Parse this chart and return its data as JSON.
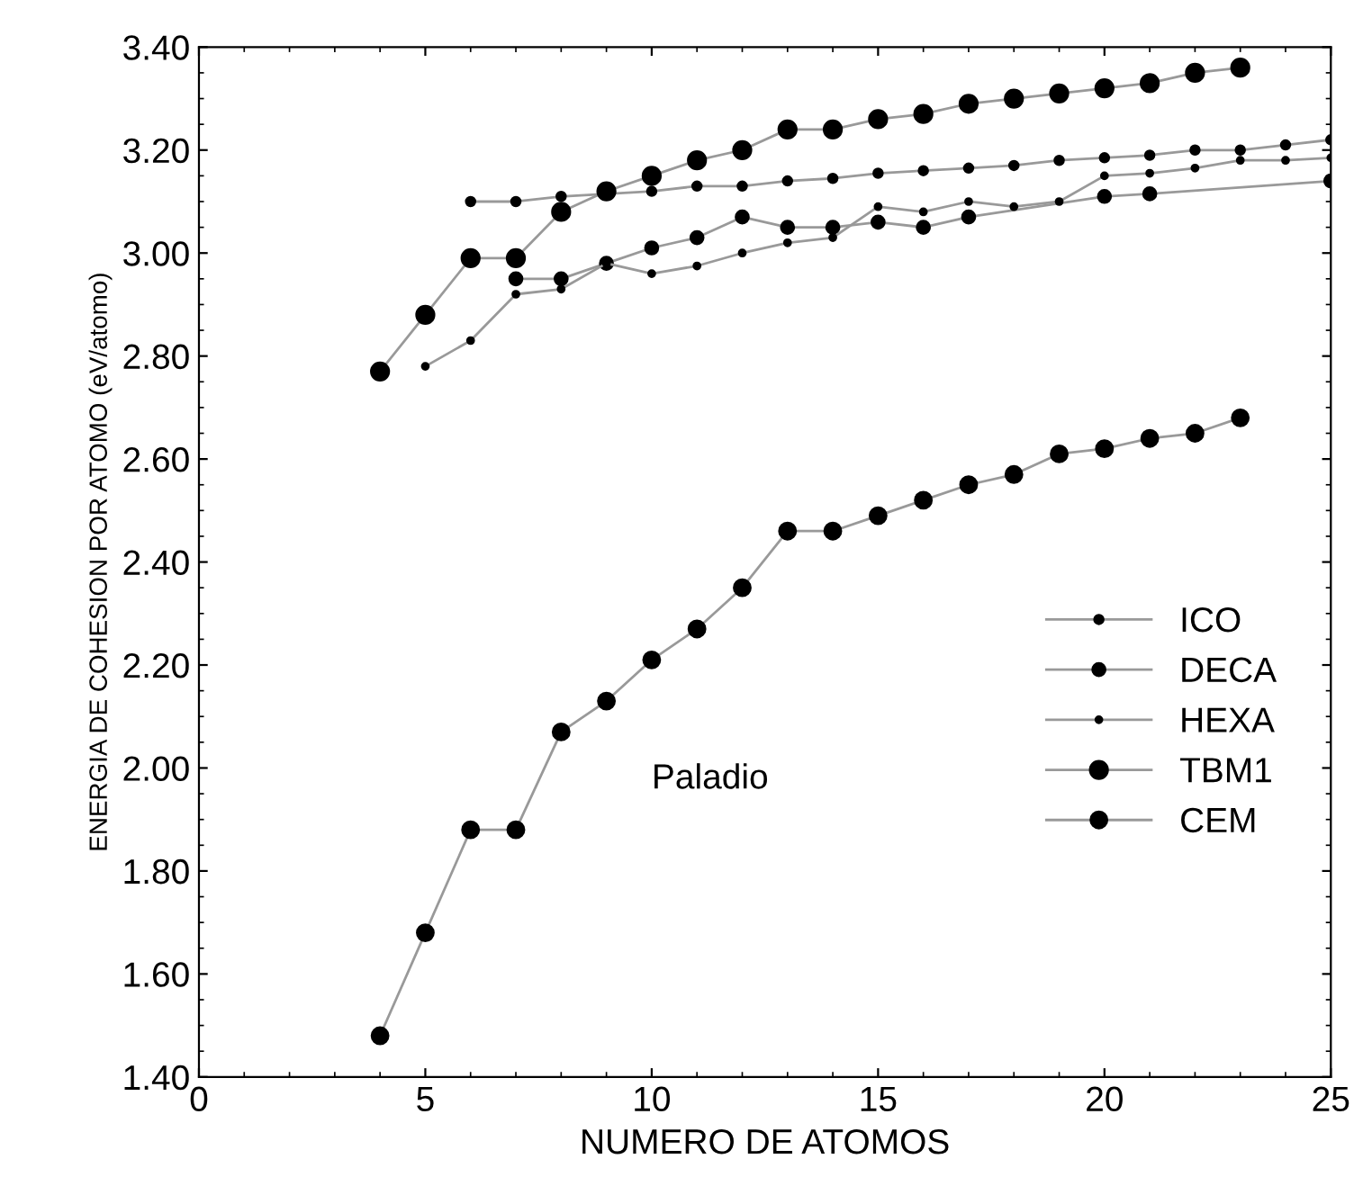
{
  "chart_data": {
    "type": "line",
    "xlabel": "NUMERO DE ATOMOS",
    "ylabel": "ENERGIA DE COHESION POR ATOMO (eV/atomo)",
    "annotations": [
      "Paladio"
    ],
    "xlim": [
      0,
      25
    ],
    "xticks": [
      0,
      5,
      10,
      15,
      20,
      25
    ],
    "ylim": [
      1.4,
      3.4
    ],
    "yticks": [
      {
        "value": 1.4,
        "label": "1.40"
      },
      {
        "value": 1.6,
        "label": "1.60"
      },
      {
        "value": 1.8,
        "label": "1.80"
      },
      {
        "value": 2.0,
        "label": "2.00"
      },
      {
        "value": 2.2,
        "label": "2.20"
      },
      {
        "value": 2.4,
        "label": "2.40"
      },
      {
        "value": 2.6,
        "label": "2.60"
      },
      {
        "value": 2.8,
        "label": "2.80"
      },
      {
        "value": 3.0,
        "label": "3.00"
      },
      {
        "value": 3.2,
        "label": "3.20"
      },
      {
        "value": 3.4,
        "label": "3.40"
      }
    ],
    "legend": "bottom right",
    "marker": "circle",
    "grid": false,
    "series": [
      {
        "name": "ICO",
        "color": "#000000",
        "x": [
          6,
          7,
          8,
          10,
          11,
          12,
          13,
          14,
          15,
          16,
          17,
          18,
          19,
          20,
          21,
          22,
          23,
          24,
          25
        ],
        "values": [
          3.1,
          3.1,
          3.11,
          3.12,
          3.13,
          3.13,
          3.14,
          3.145,
          3.155,
          3.16,
          3.165,
          3.17,
          3.18,
          3.185,
          3.19,
          3.2,
          3.2,
          3.21,
          3.22
        ]
      },
      {
        "name": "DECA",
        "color": "#000000",
        "x": [
          7,
          8,
          9,
          10,
          11,
          12,
          13,
          14,
          15,
          16,
          17,
          20,
          21,
          25
        ],
        "values": [
          2.95,
          2.95,
          2.98,
          3.01,
          3.03,
          3.07,
          3.05,
          3.05,
          3.06,
          3.05,
          3.07,
          3.11,
          3.115,
          3.14
        ]
      },
      {
        "name": "HEXA",
        "color": "#000000",
        "x": [
          5,
          6,
          7,
          8,
          9,
          10,
          11,
          12,
          13,
          14,
          15,
          16,
          17,
          18,
          19,
          20,
          21,
          22,
          23,
          24,
          25
        ],
        "values": [
          2.78,
          2.83,
          2.92,
          2.93,
          2.98,
          2.96,
          2.975,
          3.0,
          3.02,
          3.03,
          3.09,
          3.08,
          3.1,
          3.09,
          3.1,
          3.15,
          3.155,
          3.165,
          3.18,
          3.18,
          3.185
        ]
      },
      {
        "name": "TBM1",
        "color": "#000000",
        "x": [
          4,
          5,
          6,
          7,
          8,
          9,
          10,
          11,
          12,
          13,
          14,
          15,
          16,
          17,
          18,
          19,
          20,
          21,
          22,
          23
        ],
        "values": [
          2.77,
          2.88,
          2.99,
          2.99,
          3.08,
          3.12,
          3.15,
          3.18,
          3.2,
          3.24,
          3.24,
          3.26,
          3.27,
          3.29,
          3.3,
          3.31,
          3.32,
          3.33,
          3.35,
          3.36
        ]
      },
      {
        "name": "CEM",
        "color": "#000000",
        "x": [
          4,
          5,
          6,
          7,
          8,
          9,
          10,
          11,
          12,
          13,
          14,
          15,
          16,
          17,
          18,
          19,
          20,
          21,
          22,
          23
        ],
        "values": [
          1.48,
          1.68,
          1.88,
          1.88,
          2.07,
          2.13,
          2.21,
          2.27,
          2.35,
          2.46,
          2.46,
          2.49,
          2.52,
          2.55,
          2.57,
          2.61,
          2.62,
          2.64,
          2.65,
          2.68
        ]
      }
    ]
  }
}
